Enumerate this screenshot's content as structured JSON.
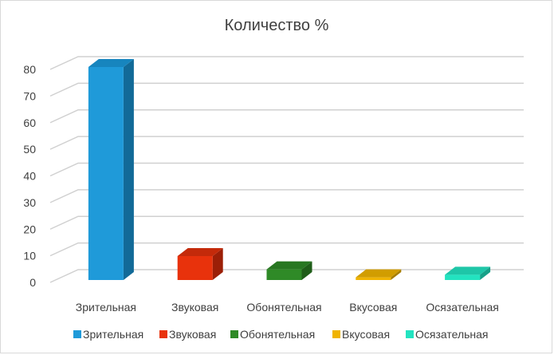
{
  "chart_data": {
    "type": "bar",
    "title": "Количество %",
    "categories": [
      "Зрительная",
      "Звуковая",
      "Обонятельная",
      "Вкусовая",
      "Осязательная"
    ],
    "series": [
      {
        "values": [
          80,
          9,
          4,
          1,
          2
        ]
      }
    ],
    "bar_colors": [
      "#1f9ad9",
      "#e8320c",
      "#2f8a27",
      "#f0b400",
      "#23e3c0"
    ],
    "bar_side_colors": [
      "#126a98",
      "#9c1f07",
      "#1f5d19",
      "#a67d00",
      "#17a088"
    ],
    "bar_top_colors": [
      "#1785be",
      "#c42a0a",
      "#287722",
      "#d19d00",
      "#1ec6a8"
    ],
    "ylim": [
      0,
      80
    ],
    "y_ticks": [
      0,
      10,
      20,
      30,
      40,
      50,
      60,
      70,
      80
    ],
    "xlabel": "",
    "ylabel": "",
    "grid": true,
    "legend_position": "bottom",
    "style": "3d-column"
  }
}
